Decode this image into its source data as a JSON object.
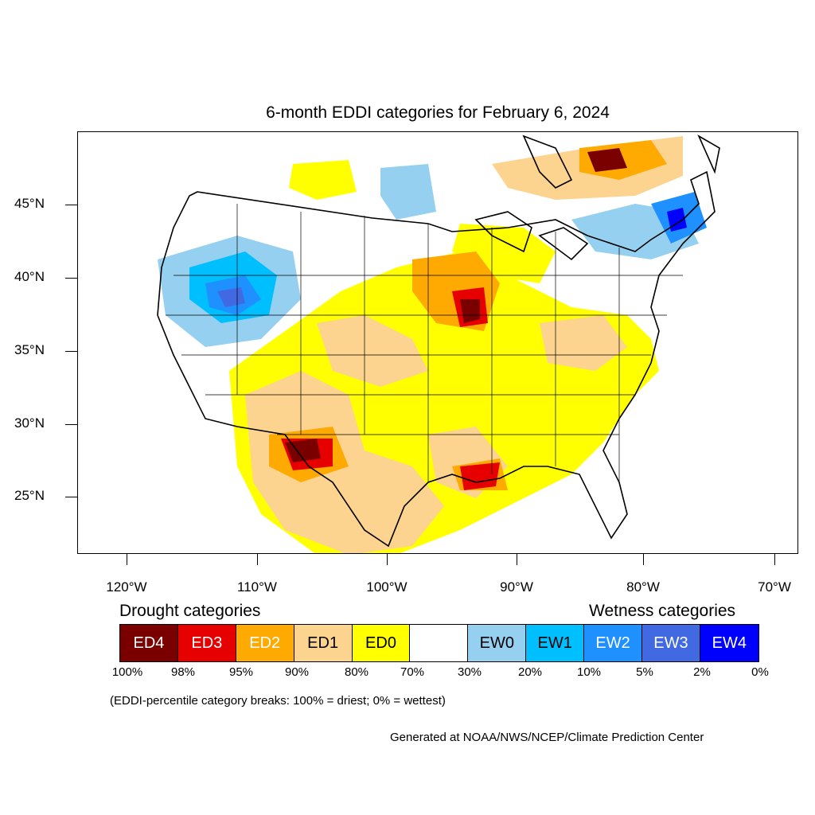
{
  "title": "6-month EDDI categories for February 6, 2024",
  "lat_labels": [
    "45°N",
    "40°N",
    "35°N",
    "30°N",
    "25°N"
  ],
  "lon_labels": [
    "120°W",
    "110°W",
    "100°W",
    "90°W",
    "80°W",
    "70°W"
  ],
  "legend": {
    "drought_title": "Drought categories",
    "wetness_title": "Wetness categories",
    "categories": [
      {
        "label": "ED4",
        "color": "#7a0000",
        "text_color": "#ffffff"
      },
      {
        "label": "ED3",
        "color": "#e60000",
        "text_color": "#ffffff"
      },
      {
        "label": "ED2",
        "color": "#ffaa00",
        "text_color": "#ffffff"
      },
      {
        "label": "ED1",
        "color": "#fcd38f",
        "text_color": "#000000"
      },
      {
        "label": "ED0",
        "color": "#ffff00",
        "text_color": "#000000"
      },
      {
        "label": "",
        "color": "#ffffff",
        "text_color": "#000000"
      },
      {
        "label": "EW0",
        "color": "#96d0f0",
        "text_color": "#000000"
      },
      {
        "label": "EW1",
        "color": "#00bfff",
        "text_color": "#000000"
      },
      {
        "label": "EW2",
        "color": "#1e90ff",
        "text_color": "#ffffff"
      },
      {
        "label": "EW3",
        "color": "#4169e1",
        "text_color": "#ffffff"
      },
      {
        "label": "EW4",
        "color": "#0000ff",
        "text_color": "#ffffff"
      }
    ],
    "percentiles": [
      "100%",
      "98%",
      "95%",
      "90%",
      "80%",
      "70%",
      "30%",
      "20%",
      "10%",
      "5%",
      "2%",
      "0%"
    ]
  },
  "note": "(EDDI-percentile category breaks: 100% = driest; 0% = wettest)",
  "credit": "Generated at NOAA/NWS/NCEP/Climate Prediction Center"
}
